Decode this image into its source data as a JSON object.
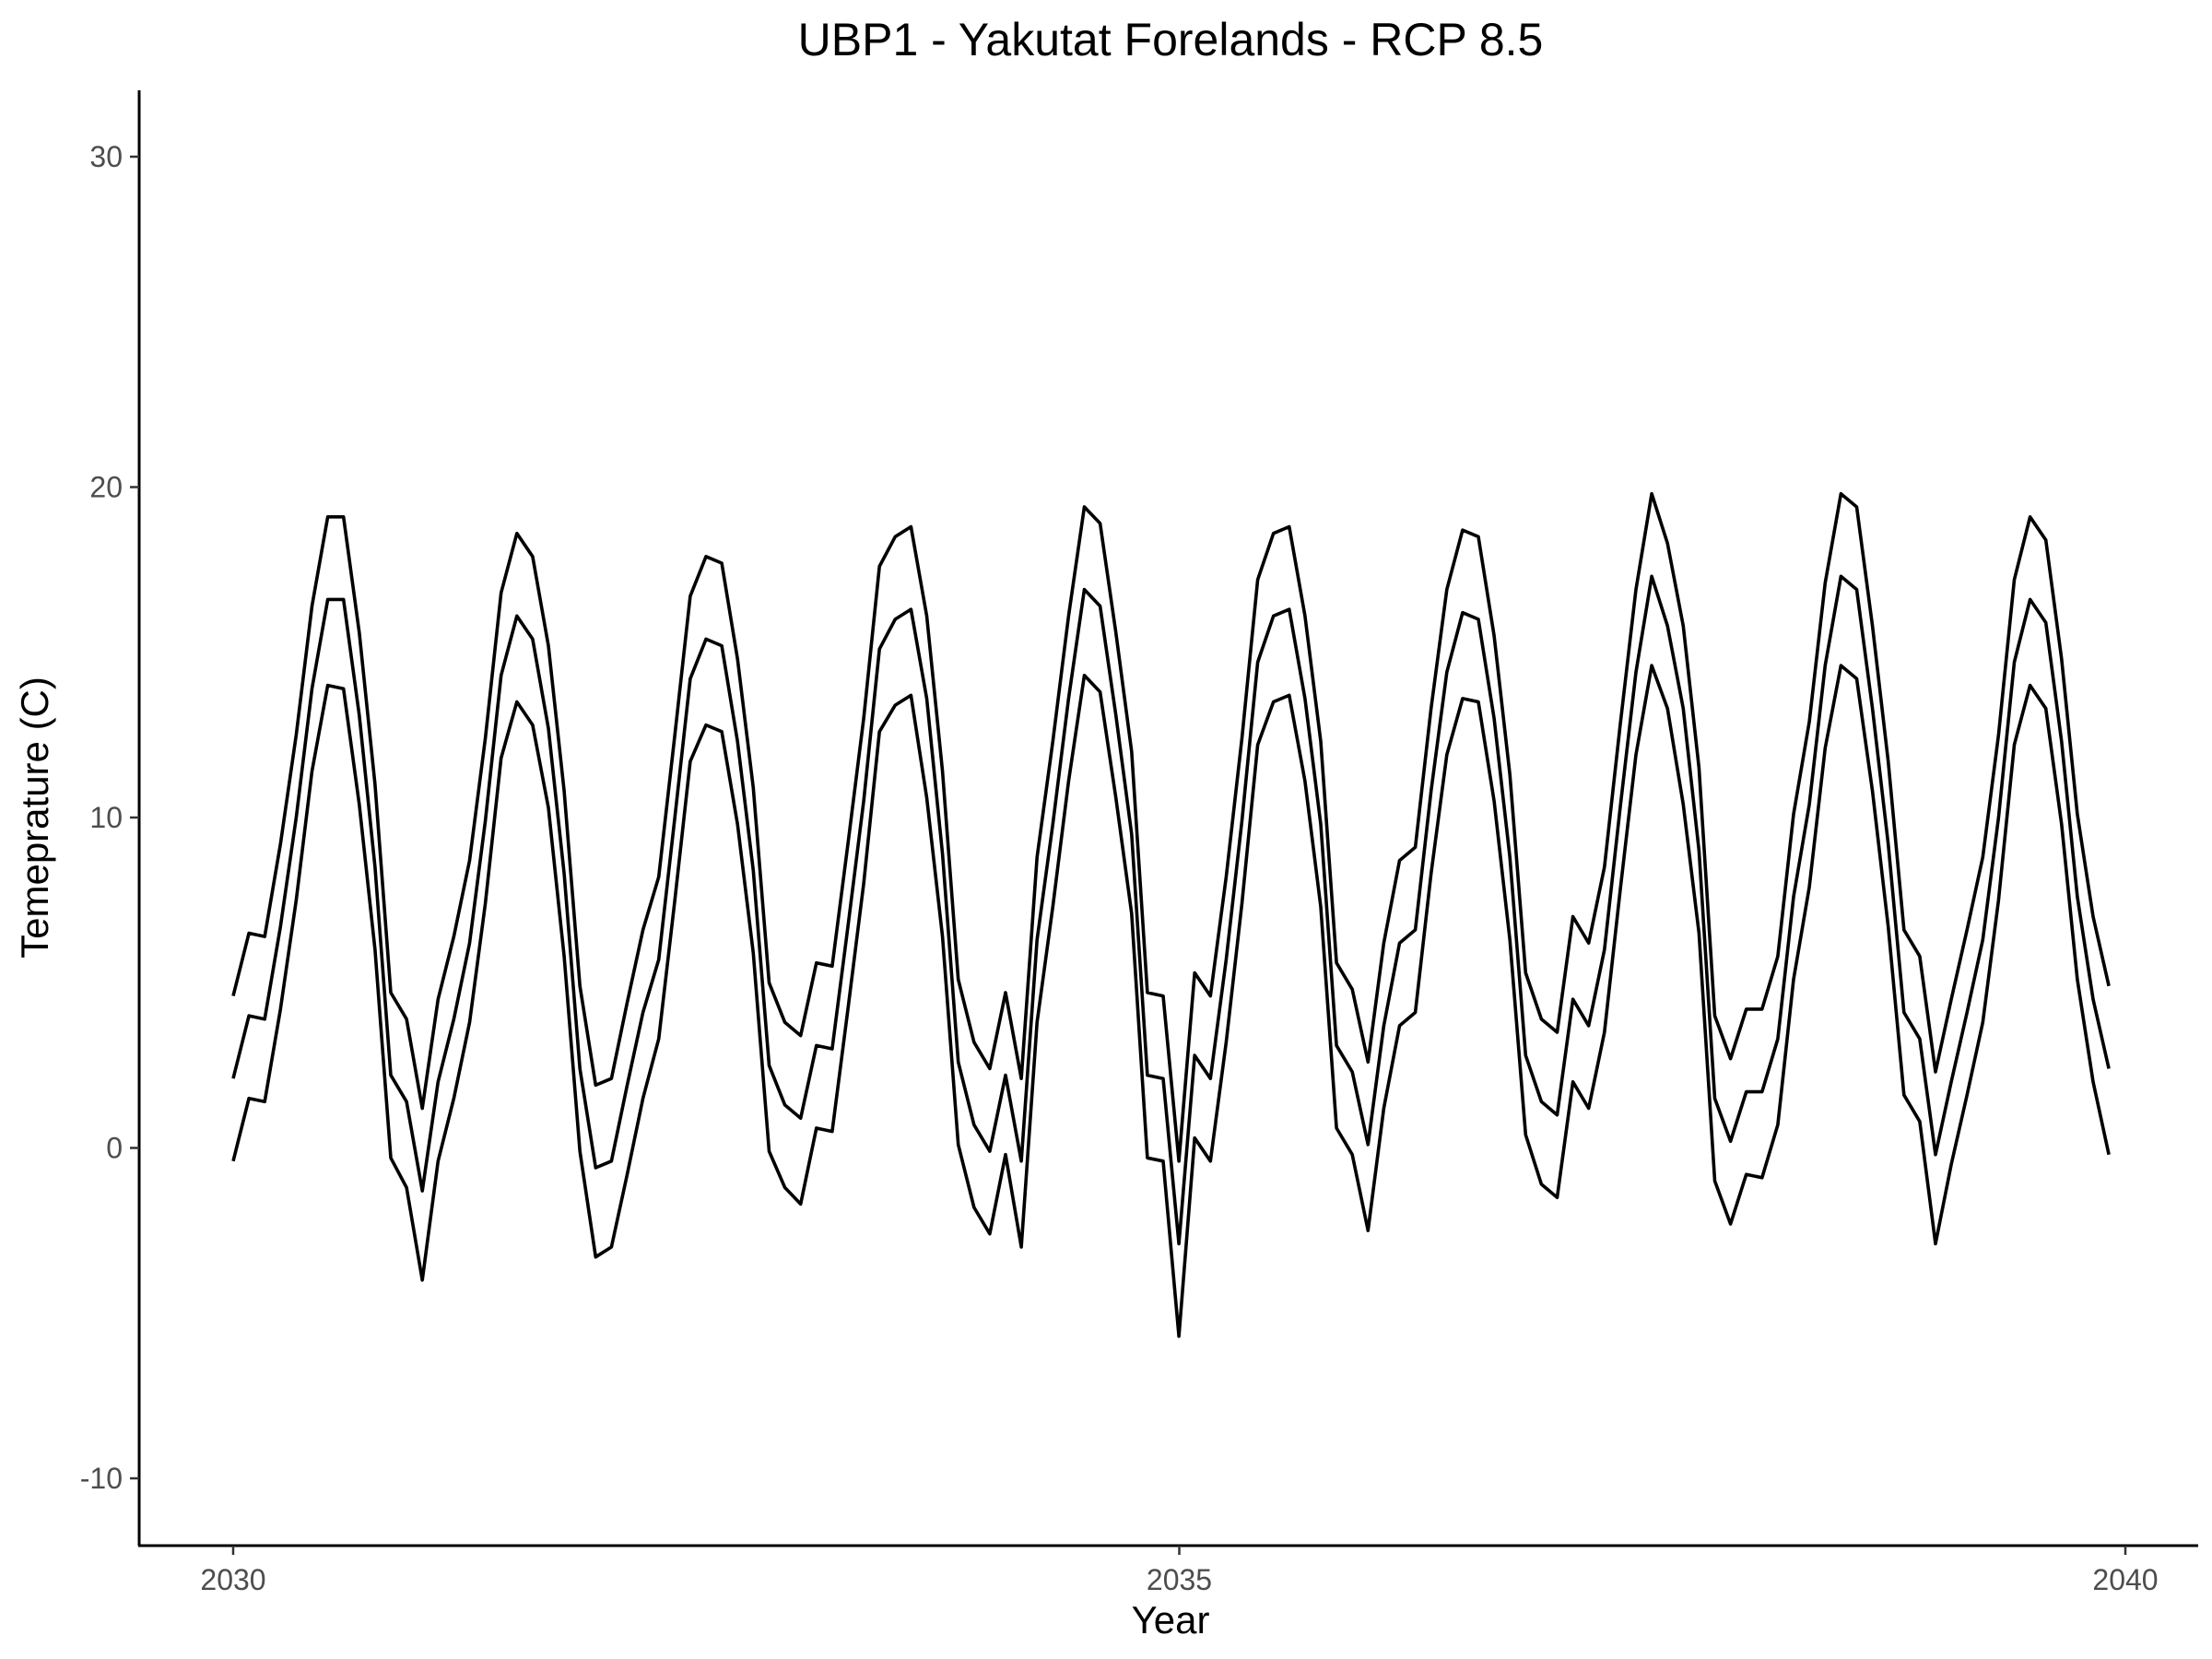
{
  "chart_data": {
    "type": "line",
    "title": "UBP1 - Yakutat Forelands - RCP 8.5",
    "xlabel": "Year",
    "ylabel": "Temeprature (C)",
    "xlim": [
      2029.5,
      2040.3
    ],
    "ylim": [
      -12,
      32
    ],
    "x_ticks": [
      2030,
      2035,
      2040
    ],
    "y_ticks": [
      -10,
      0,
      10,
      20,
      30
    ],
    "x_tick_labels": [
      "2030",
      "2035",
      "2040"
    ],
    "y_tick_labels": [
      "-10",
      "0",
      "10",
      "20",
      "30"
    ],
    "grid": false,
    "legend": "none",
    "line_color": "#000000",
    "x_step": 0.0833,
    "x_start": 2030,
    "series": [
      {
        "values": [
          4.6,
          6.5,
          6.4,
          9.2,
          12.5,
          16.4,
          19.1,
          19.1,
          15.6,
          11.0,
          4.7,
          3.9,
          1.2,
          4.5,
          6.4,
          8.7,
          12.4,
          16.8,
          18.6,
          17.9,
          15.2,
          10.8,
          4.9,
          1.9,
          2.1,
          4.4,
          6.6,
          8.2,
          12.4,
          16.7,
          17.9,
          17.7,
          14.8,
          10.9,
          5.0,
          3.8,
          3.4,
          5.6,
          5.5,
          9.2,
          13.0,
          17.6,
          18.5,
          18.8,
          16.1,
          11.4,
          5.1,
          3.2,
          2.4,
          4.7,
          2.1,
          8.8,
          12.3,
          16.1,
          19.4,
          18.9,
          15.6,
          12.0,
          4.7,
          4.6,
          -0.4,
          5.3,
          4.6,
          8.2,
          12.4,
          17.2,
          18.6,
          18.8,
          16.1,
          12.3,
          5.6,
          4.8,
          2.6,
          6.2,
          8.7,
          9.1,
          13.3,
          16.9,
          18.7,
          18.5,
          15.5,
          11.3,
          5.3,
          3.9,
          3.5,
          7.0,
          6.2,
          8.5,
          12.8,
          16.9,
          19.8,
          18.3,
          15.8,
          11.5,
          4.0,
          2.7,
          4.2,
          4.2,
          5.8,
          10.1,
          12.9,
          17.1,
          19.8,
          19.4,
          15.8,
          11.7,
          6.6,
          5.8,
          2.3,
          4.5,
          6.6,
          8.8,
          12.5,
          17.2,
          19.1,
          18.4,
          14.8,
          10.1,
          7.0,
          4.9
        ]
      },
      {
        "values": [
          2.1,
          4.0,
          3.9,
          6.7,
          10.0,
          13.9,
          16.6,
          16.6,
          13.1,
          8.5,
          2.2,
          1.4,
          -1.3,
          2.0,
          3.9,
          6.2,
          9.9,
          14.3,
          16.1,
          15.4,
          12.7,
          8.3,
          2.4,
          -0.6,
          -0.4,
          1.9,
          4.1,
          5.7,
          9.9,
          14.2,
          15.4,
          15.2,
          12.3,
          8.4,
          2.5,
          1.3,
          0.9,
          3.1,
          3.0,
          6.7,
          10.5,
          15.1,
          16.0,
          16.3,
          13.6,
          8.9,
          2.6,
          0.7,
          -0.1,
          2.2,
          -0.4,
          6.3,
          9.8,
          13.6,
          16.9,
          16.4,
          13.1,
          9.5,
          2.2,
          2.1,
          -2.9,
          2.8,
          2.1,
          5.7,
          9.9,
          14.7,
          16.1,
          16.3,
          13.6,
          9.8,
          3.1,
          2.3,
          0.1,
          3.7,
          6.2,
          6.6,
          10.8,
          14.4,
          16.2,
          16.0,
          13.0,
          8.8,
          2.8,
          1.4,
          1.0,
          4.5,
          3.7,
          6.0,
          10.3,
          14.4,
          17.3,
          15.8,
          13.3,
          9.0,
          1.5,
          0.2,
          1.7,
          1.7,
          3.3,
          7.6,
          10.4,
          14.6,
          17.3,
          16.9,
          13.3,
          9.2,
          4.1,
          3.3,
          -0.2,
          2.0,
          4.1,
          6.3,
          10.0,
          14.7,
          16.6,
          15.9,
          12.3,
          7.6,
          4.5,
          2.4
        ]
      },
      {
        "values": [
          -0.4,
          1.5,
          1.4,
          4.2,
          7.5,
          11.4,
          14.0,
          13.9,
          10.4,
          6.0,
          -0.3,
          -1.2,
          -4.0,
          -0.4,
          1.5,
          3.8,
          7.4,
          11.8,
          13.5,
          12.8,
          10.3,
          5.8,
          -0.1,
          -3.3,
          -3.0,
          -0.8,
          1.5,
          3.3,
          7.4,
          11.7,
          12.8,
          12.6,
          9.8,
          5.9,
          -0.1,
          -1.2,
          -1.7,
          0.6,
          0.5,
          4.2,
          8.0,
          12.6,
          13.4,
          13.7,
          10.6,
          6.4,
          0.1,
          -1.8,
          -2.6,
          -0.2,
          -3.0,
          3.8,
          7.3,
          11.1,
          14.3,
          13.8,
          10.6,
          7.1,
          -0.3,
          -0.4,
          -5.7,
          0.3,
          -0.4,
          3.2,
          7.4,
          12.2,
          13.5,
          13.7,
          11.1,
          7.3,
          0.6,
          -0.2,
          -2.5,
          1.2,
          3.7,
          4.1,
          8.3,
          11.9,
          13.6,
          13.5,
          10.5,
          6.3,
          0.4,
          -1.1,
          -1.5,
          2.0,
          1.2,
          3.5,
          7.8,
          11.9,
          14.6,
          13.3,
          10.4,
          6.5,
          -1.0,
          -2.3,
          -0.8,
          -0.9,
          0.7,
          5.1,
          7.9,
          12.1,
          14.6,
          14.2,
          10.8,
          6.7,
          1.6,
          0.8,
          -2.9,
          -0.5,
          1.6,
          3.8,
          7.5,
          12.2,
          14.0,
          13.3,
          9.8,
          5.1,
          2.0,
          -0.2
        ]
      }
    ]
  }
}
